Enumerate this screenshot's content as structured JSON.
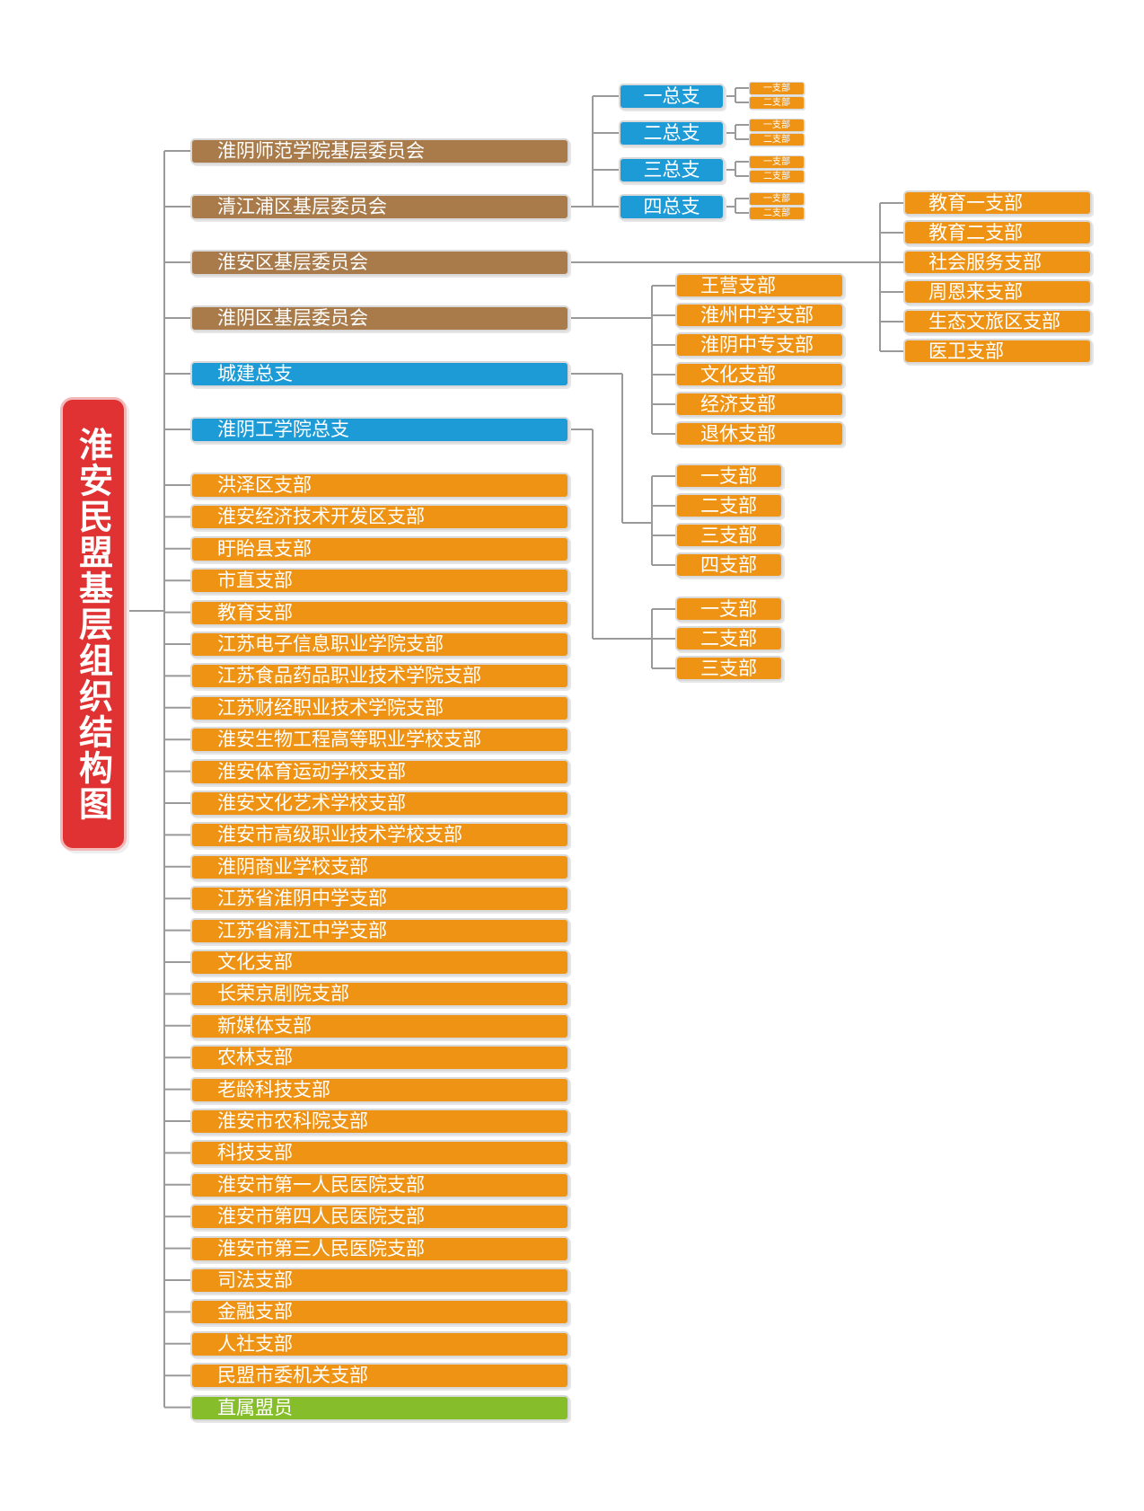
{
  "title": "淮安民盟基层组织结构图",
  "colors": {
    "brown": "#a97b4a",
    "blue": "#1c9bd6",
    "orange": "#ef9314",
    "green": "#86be2b",
    "title_red": "#e03232"
  },
  "committees": [
    "淮阴师范学院基层委员会",
    "清江浦区基层委员会",
    "淮安区基层委员会",
    "淮阴区基层委员会"
  ],
  "general_branches": [
    "城建总支",
    "淮阴工学院总支"
  ],
  "branches": [
    "洪泽区支部",
    "淮安经济技术开发区支部",
    "盱眙县支部",
    "市直支部",
    "教育支部",
    "江苏电子信息职业学院支部",
    "江苏食品药品职业技术学院支部",
    "江苏财经职业技术学院支部",
    "淮安生物工程高等职业学校支部",
    "淮安体育运动学校支部",
    "淮安文化艺术学校支部",
    "淮安市高级职业技术学校支部",
    "淮阴商业学校支部",
    "江苏省淮阴中学支部",
    "江苏省清江中学支部",
    "文化支部",
    "长荣京剧院支部",
    "新媒体支部",
    "农林支部",
    "老龄科技支部",
    "淮安市农科院支部",
    "科技支部",
    "淮安市第一人民医院支部",
    "淮安市第四人民医院支部",
    "淮安市第三人民医院支部",
    "司法支部",
    "金融支部",
    "人社支部",
    "民盟市委机关支部"
  ],
  "direct_members": "直属盟员",
  "qingjiangpu_general_branches": [
    {
      "label": "一总支",
      "subs": [
        "一支部",
        "二支部"
      ]
    },
    {
      "label": "二总支",
      "subs": [
        "一支部",
        "二支部"
      ]
    },
    {
      "label": "三总支",
      "subs": [
        "一支部",
        "二支部"
      ]
    },
    {
      "label": "四总支",
      "subs": [
        "一支部",
        "二支部"
      ]
    }
  ],
  "huaian_district_branches": [
    "教育一支部",
    "教育二支部",
    "社会服务支部",
    "周恩来支部",
    "生态文旅区支部",
    "医卫支部"
  ],
  "huaiyin_district_branches": [
    "王营支部",
    "淮州中学支部",
    "淮阴中专支部",
    "文化支部",
    "经济支部",
    "退休支部"
  ],
  "chengjian_branches": [
    "一支部",
    "二支部",
    "三支部",
    "四支部"
  ],
  "hyit_branches": [
    "一支部",
    "二支部",
    "三支部"
  ]
}
